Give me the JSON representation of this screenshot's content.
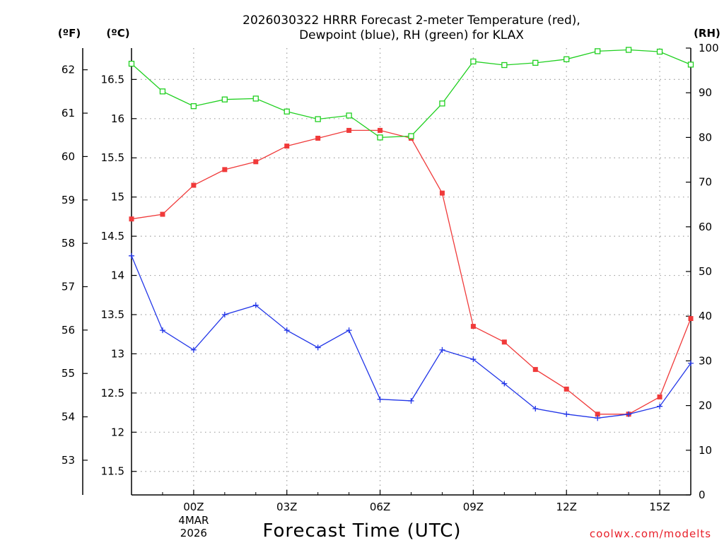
{
  "chart_data": {
    "type": "line",
    "title_line1": "2026030322 HRRR Forecast 2-meter Temperature (red),",
    "title_line2": "Dewpoint (blue), RH (green) for KLAX",
    "xlabel": "Forecast Time (UTC)",
    "credit": "coolwx.com/modelts",
    "units": {
      "fahrenheit": "(ºF)",
      "celsius": "(ºC)",
      "rh": "(RH)"
    },
    "x_ticks": [
      "00Z",
      "03Z",
      "06Z",
      "09Z",
      "12Z",
      "15Z"
    ],
    "date_label": [
      "4MAR",
      "2026"
    ],
    "y_left_f": {
      "range": [
        52.2,
        62.5
      ],
      "ticks": [
        "53",
        "54",
        "55",
        "56",
        "57",
        "58",
        "59",
        "60",
        "61",
        "62"
      ]
    },
    "y_celsius": {
      "range": [
        11.2,
        16.9
      ],
      "ticks": [
        "11.5",
        "12",
        "12.5",
        "13",
        "13.5",
        "14",
        "14.5",
        "15",
        "15.5",
        "16",
        "16.5"
      ]
    },
    "y_right_rh": {
      "range": [
        0,
        100
      ],
      "ticks": [
        "0",
        "10",
        "20",
        "30",
        "40",
        "50",
        "60",
        "70",
        "80",
        "90",
        "100"
      ]
    },
    "x": [
      22,
      23,
      24,
      25,
      26,
      27,
      28,
      29,
      30,
      31,
      32,
      33,
      34,
      35,
      36,
      37,
      38,
      39,
      40
    ],
    "series": [
      {
        "name": "Temperature",
        "axis": "celsius",
        "color": "#f03a3a",
        "marker": "filled-square",
        "values": [
          14.72,
          14.78,
          15.15,
          15.35,
          15.45,
          15.65,
          15.75,
          15.85,
          15.85,
          15.75,
          15.05,
          13.35,
          13.15,
          12.8,
          12.55,
          12.23,
          12.23,
          12.45,
          13.45
        ]
      },
      {
        "name": "Dewpoint",
        "axis": "celsius",
        "color": "#2236e8",
        "marker": "plus",
        "values": [
          14.25,
          13.3,
          13.05,
          13.5,
          13.62,
          13.3,
          13.08,
          13.3,
          12.42,
          12.4,
          13.05,
          12.93,
          12.62,
          12.3,
          12.23,
          12.18,
          12.23,
          12.33,
          12.88
        ]
      },
      {
        "name": "RH",
        "axis": "rh",
        "color": "#20d020",
        "marker": "open-square",
        "values": [
          96.5,
          90.3,
          87.0,
          88.5,
          88.7,
          85.8,
          84.1,
          84.9,
          80.0,
          80.3,
          87.6,
          97.0,
          96.2,
          96.7,
          97.5,
          99.3,
          99.6,
          99.2,
          96.3
        ]
      }
    ]
  }
}
